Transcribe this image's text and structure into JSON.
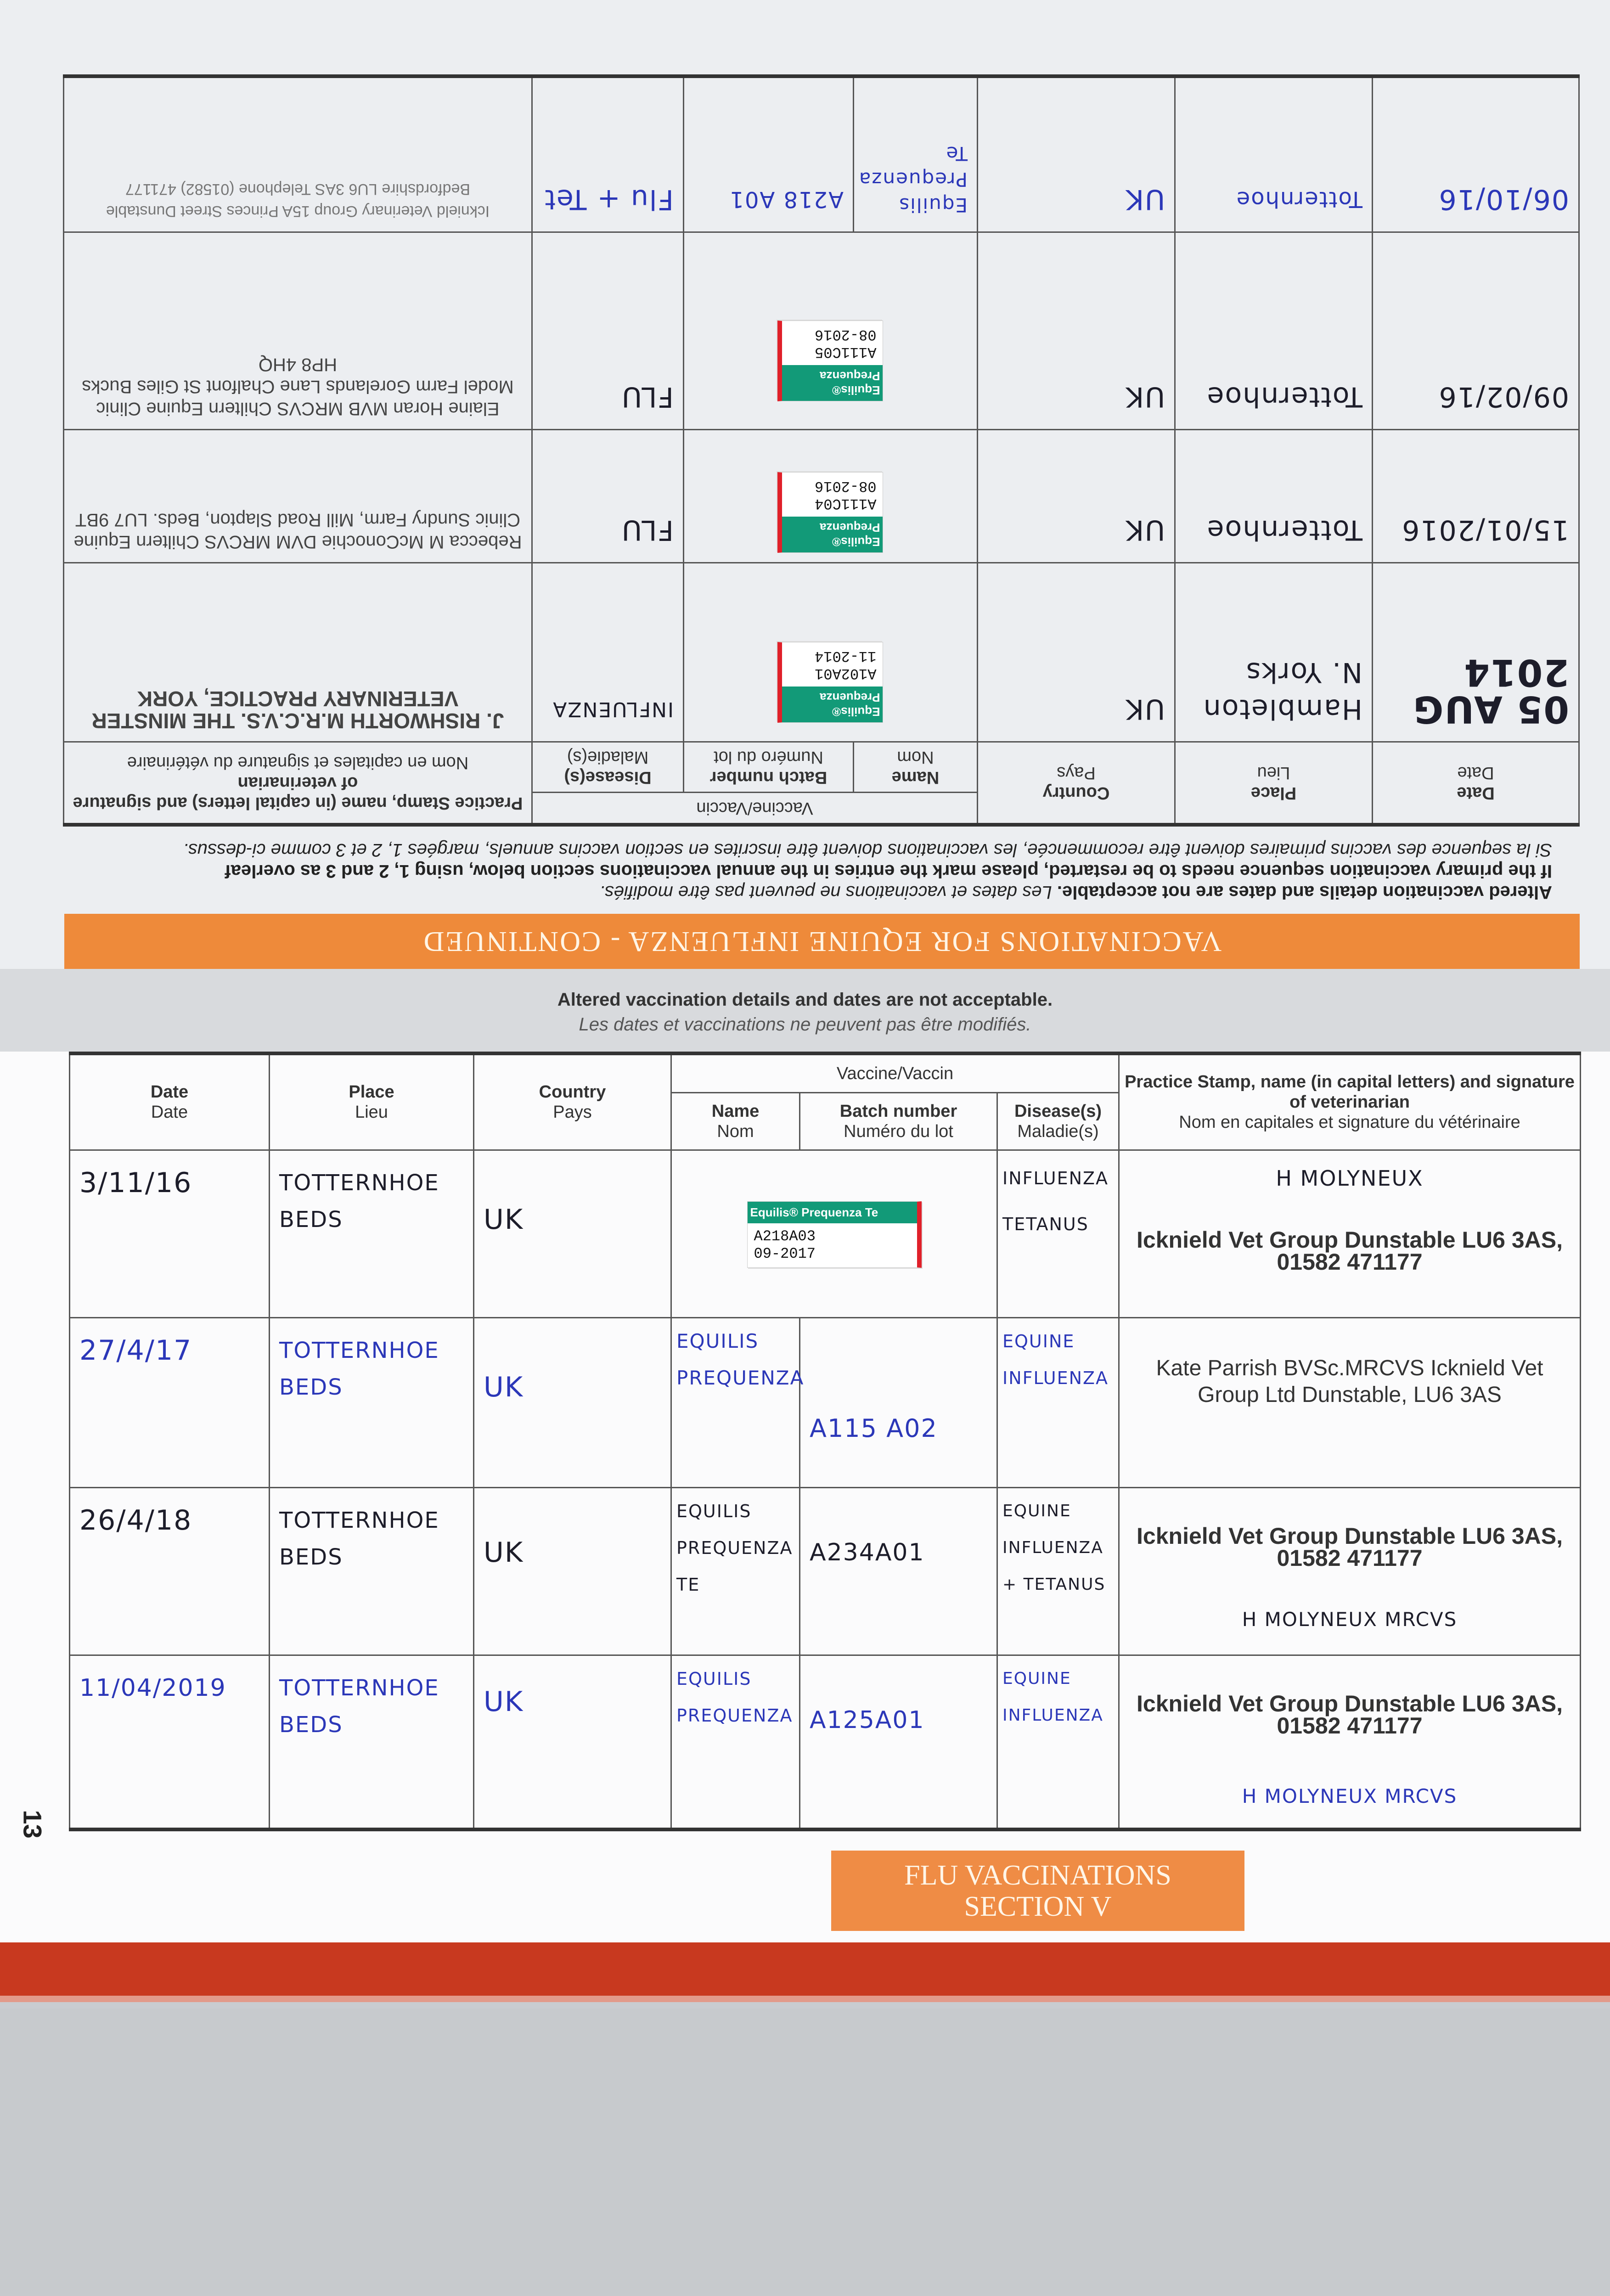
{
  "upper": {
    "banner": "VACCINATIONS FOR EQUINE INFLUENZA - CONTINUED",
    "instructions": {
      "line1_bold": "Altered vaccination details and dates are not acceptable.",
      "line1_fr": "Les dates et vaccinations ne peuvent pas être modifiés.",
      "line2_bold": "If the primary vaccination sequence needs to be restarted, please mark the entries in the annual vaccinations section below, using 1, 2 and 3 as overleaf",
      "line3_fr": "Si la sequence des vaccins primaires doivent être recommencée, les vaccinations doivent être inscrites en section vaccins annuels, margées 1, 2 et 3 comme ci-dessus."
    },
    "headers": {
      "date": "Date",
      "date_fr": "Date",
      "place": "Place",
      "place_fr": "Lieu",
      "country": "Country",
      "country_fr": "Pays",
      "vaccine": "Vaccine/Vaccin",
      "name": "Name",
      "name_fr": "Nom",
      "batch": "Batch number",
      "batch_fr": "Numéro du lot",
      "disease": "Disease(s)",
      "disease_fr": "Maladie(s)",
      "practice": "Practice Stamp, name (in capital letters) and signature of veterinarian",
      "practice_fr": "Nom en capitales et signature du vétérinaire"
    },
    "rows": [
      {
        "date": "05 AUG 2014",
        "place": "Hambleton N. Yorks",
        "country": "UK",
        "sticker": {
          "brand": "Equilis® Prequenza",
          "lot": "A102A01",
          "exp": "11-2014"
        },
        "disease": "INFLUENZA",
        "stamp": "J. RISHWORTH M.R.C.V.S. THE MINSTER VETERINARY PRACTICE, YORK"
      },
      {
        "date": "15/01/2016",
        "place": "Totternhoe",
        "country": "UK",
        "sticker": {
          "brand": "Equilis® Prequenza",
          "lot": "A111C04",
          "exp": "08-2016"
        },
        "disease": "FLU",
        "stamp": "Rebecca M McConochie DVM MRCVS Chiltern Equine Clinic Sundry Farm, Mill Road Slapton, Beds. LU7 9BT"
      },
      {
        "date": "09/02/16",
        "place": "Totternhoe",
        "country": "UK",
        "sticker": {
          "brand": "Equilis® Prequenza",
          "lot": "A111C05",
          "exp": "08-2016"
        },
        "disease": "FLU",
        "stamp": "Elaine Horan MVB MRCVS Chiltern Equine Clinic Model Farm Gorelands Lane Chalfont St Giles Bucks HP8 4HQ"
      },
      {
        "date": "06/10/16",
        "place": "Totternhoe",
        "country": "UK",
        "name": "Equilis Prequenza Te",
        "batch": "A218 A01",
        "disease": "Flu + Tet",
        "stamp": "Icknield Veterinary Group 15A Princes Street Dunstable Bedfordshire LU6 3AS Telephone (01582) 471177"
      }
    ]
  },
  "lower": {
    "notice": "Altered vaccination details and dates are not acceptable.",
    "notice_fr": "Les dates et vaccinations ne peuvent pas être modifiés.",
    "headers": {
      "date": "Date",
      "date_fr": "Date",
      "place": "Place",
      "place_fr": "Lieu",
      "country": "Country",
      "country_fr": "Pays",
      "vaccine": "Vaccine/Vaccin",
      "name": "Name",
      "name_fr": "Nom",
      "batch": "Batch number",
      "batch_fr": "Numéro du lot",
      "disease": "Disease(s)",
      "disease_fr": "Maladie(s)",
      "practice": "Practice Stamp, name (in capital letters) and signature of veterinarian",
      "practice_fr": "Nom en capitales et signature du vétérinaire"
    },
    "rows": [
      {
        "date": "3/11/16",
        "place": "TOTTERNHOE BEDS",
        "country": "UK",
        "sticker": {
          "brand": "Equilis® Prequenza Te",
          "lot": "A218A03",
          "exp": "09-2017"
        },
        "disease": "INFLUENZA TETANUS",
        "vet_name": "H MOLYNEUX",
        "stamp": "Icknield Vet Group Dunstable LU6 3AS, 01582 471177"
      },
      {
        "date": "27/4/17",
        "place": "TOTTERNHOE BEDS",
        "country": "UK",
        "name": "EQUILIS PREQUENZA",
        "batch": "A115 A02",
        "disease": "EQUINE INFLUENZA",
        "stamp": "Kate Parrish BVSc.MRCVS Icknield Vet Group Ltd Dunstable, LU6 3AS"
      },
      {
        "date": "26/4/18",
        "place": "TOTTERNHOE BEDS",
        "country": "UK",
        "name": "EQUILIS PREQUENZA TE",
        "batch": "A234A01",
        "disease": "EQUINE INFLUENZA + TETANUS",
        "stamp": "Icknield Vet Group Dunstable LU6 3AS, 01582 471177",
        "vet_name": "H MOLYNEUX MRCVS"
      },
      {
        "date": "11/04/2019",
        "place": "TOTTERNHOE BEDS",
        "country": "UK",
        "name": "EQUILIS PREQUENZA",
        "batch": "A125A01",
        "disease": "EQUINE INFLUENZA",
        "stamp": "Icknield Vet Group Dunstable LU6 3AS, 01582 471177",
        "vet_name": "H MOLYNEUX MRCVS"
      }
    ],
    "page_number": "13",
    "section_title": "FLU VACCINATIONS",
    "section_sub": "SECTION V"
  },
  "colors": {
    "orange": "#ee8a3a",
    "red_edge": "#c8391f",
    "ink_blue": "#2b37b8",
    "sticker_green": "#129a78"
  }
}
